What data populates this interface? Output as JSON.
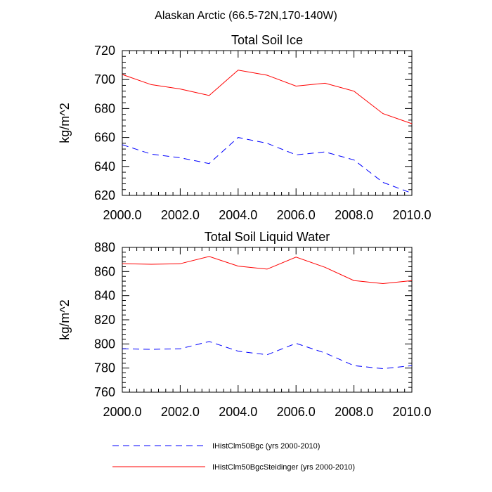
{
  "title": "Alaskan Arctic (66.5-72N,170-140W)",
  "legend": {
    "items": [
      {
        "label": "IHistClm50Bgc (yrs 2000-2010)",
        "color": "#0000ff",
        "dash": "dashed"
      },
      {
        "label": "IHistClm50BgcSteidinger (yrs 2000-2010)",
        "color": "#ff0000",
        "dash": "solid"
      }
    ]
  },
  "chart_data": [
    {
      "type": "line",
      "title": "Total Soil Ice",
      "xlabel": "",
      "ylabel": "kg/m^2",
      "xlim": [
        2000,
        2010
      ],
      "ylim": [
        620,
        720
      ],
      "xticks": [
        2000,
        2002,
        2004,
        2006,
        2008,
        2010
      ],
      "xtick_labels": [
        "2000.0",
        "2002.0",
        "2004.0",
        "2006.0",
        "2008.0",
        "2010.0"
      ],
      "yticks": [
        620,
        640,
        660,
        680,
        700,
        720
      ],
      "ytick_labels": [
        "620",
        "640",
        "660",
        "680",
        "700",
        "720"
      ],
      "x": [
        2000,
        2001,
        2002,
        2003,
        2004,
        2005,
        2006,
        2007,
        2008,
        2009,
        2010
      ],
      "series": [
        {
          "name": "IHistClm50Bgc (yrs 2000-2010)",
          "color": "#0000ff",
          "dash": "dashed",
          "values": [
            655,
            648.5,
            646,
            642,
            660,
            656,
            648,
            650,
            644.5,
            629,
            621.5
          ]
        },
        {
          "name": "IHistClm50BgcSteidinger (yrs 2000-2010)",
          "color": "#ff0000",
          "dash": "solid",
          "values": [
            703.5,
            696.5,
            693.5,
            689,
            706.5,
            703,
            695.5,
            697.5,
            692,
            676.5,
            669.5
          ]
        }
      ]
    },
    {
      "type": "line",
      "title": "Total Soil Liquid Water",
      "xlabel": "",
      "ylabel": "kg/m^2",
      "xlim": [
        2000,
        2010
      ],
      "ylim": [
        760,
        880
      ],
      "xticks": [
        2000,
        2002,
        2004,
        2006,
        2008,
        2010
      ],
      "xtick_labels": [
        "2000.0",
        "2002.0",
        "2004.0",
        "2006.0",
        "2008.0",
        "2010.0"
      ],
      "yticks": [
        760,
        780,
        800,
        820,
        840,
        860,
        880
      ],
      "ytick_labels": [
        "760",
        "780",
        "800",
        "820",
        "840",
        "860",
        "880"
      ],
      "x": [
        2000,
        2001,
        2002,
        2003,
        2004,
        2005,
        2006,
        2007,
        2008,
        2009,
        2010
      ],
      "series": [
        {
          "name": "IHistClm50Bgc (yrs 2000-2010)",
          "color": "#0000ff",
          "dash": "dashed",
          "values": [
            796,
            795.5,
            796,
            802,
            794,
            791,
            800.5,
            792.5,
            782,
            779.5,
            782
          ]
        },
        {
          "name": "IHistClm50BgcSteidinger (yrs 2000-2010)",
          "color": "#ff0000",
          "dash": "solid",
          "values": [
            866.5,
            866,
            866.5,
            872.5,
            864.5,
            862,
            872,
            863.5,
            852.5,
            850,
            852.5
          ]
        }
      ]
    }
  ]
}
